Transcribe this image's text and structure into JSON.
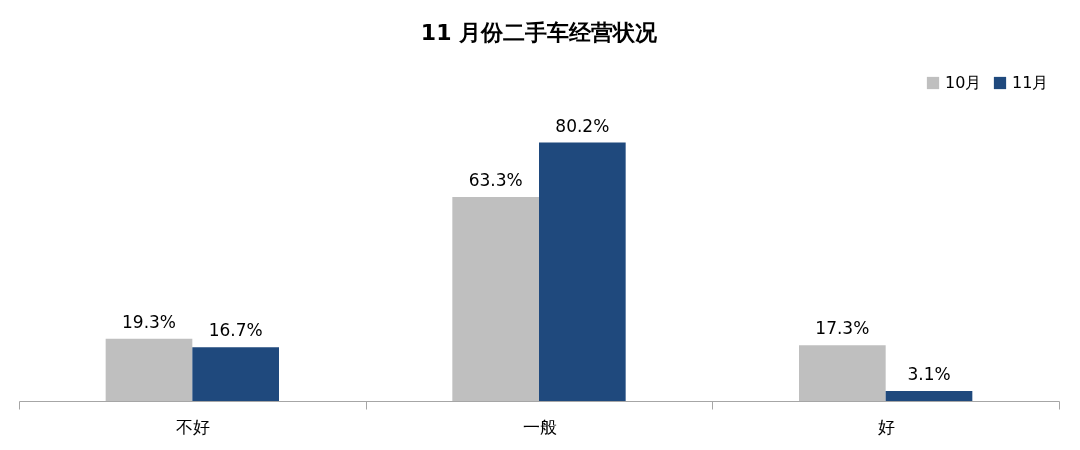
{
  "chart_data": {
    "type": "bar",
    "title": "11 月份二手车经营状况",
    "categories": [
      "不好",
      "一般",
      "好"
    ],
    "series": [
      {
        "name": "10月",
        "color": "#bfbfbf",
        "values": [
          19.3,
          63.3,
          17.3
        ],
        "value_labels": [
          "19.3%",
          "63.3%",
          "17.3%"
        ]
      },
      {
        "name": "11月",
        "color": "#1f497d",
        "values": [
          16.7,
          80.2,
          3.1
        ],
        "value_labels": [
          "16.7%",
          "80.2%",
          "3.1%"
        ]
      }
    ],
    "legend": "top right",
    "grid": false
  }
}
